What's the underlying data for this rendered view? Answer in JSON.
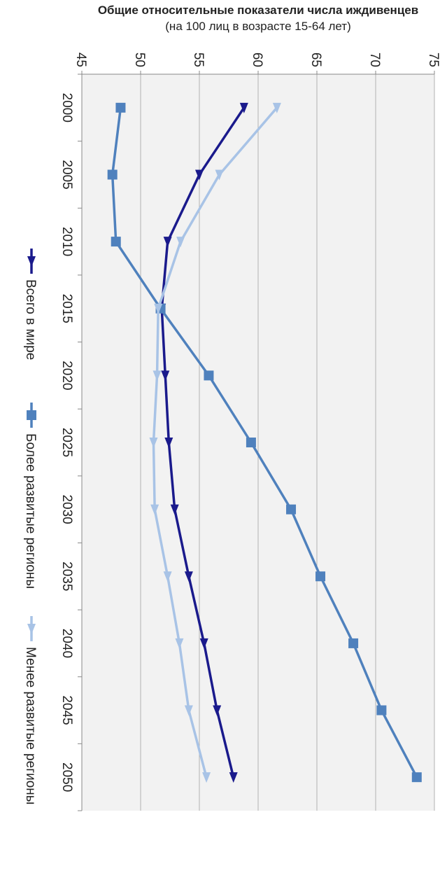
{
  "chart_data": {
    "type": "line",
    "orientation": "rotated-90-clockwise",
    "ylabel_line1": "Общие относительные показатели числа иждивенцев",
    "ylabel_line2": "(на 100 лиц в возрасте 15-64 лет)",
    "xlabel": "",
    "x": [
      2000,
      2005,
      2010,
      2015,
      2020,
      2025,
      2030,
      2035,
      2040,
      2045,
      2050
    ],
    "ylim": [
      45,
      75
    ],
    "yticks": [
      45,
      50,
      55,
      60,
      65,
      70,
      75
    ],
    "grid": true,
    "legend_position": "bottom",
    "series": [
      {
        "name": "Всего в мире",
        "color": "#1a1a8c",
        "marker": "triangle",
        "values": [
          58.8,
          55.0,
          52.3,
          51.8,
          52.1,
          52.4,
          52.9,
          54.1,
          55.4,
          56.5,
          57.9
        ]
      },
      {
        "name": "Более развитые регионы",
        "color": "#4f81bd",
        "marker": "square",
        "values": [
          48.3,
          47.6,
          47.9,
          51.7,
          55.8,
          59.4,
          62.8,
          65.3,
          68.1,
          70.5,
          73.5
        ]
      },
      {
        "name": "Менее развитые регионы",
        "color": "#a8c3e6",
        "marker": "triangle",
        "values": [
          61.6,
          56.7,
          53.4,
          51.5,
          51.4,
          51.1,
          51.2,
          52.3,
          53.3,
          54.1,
          55.6
        ]
      }
    ]
  }
}
